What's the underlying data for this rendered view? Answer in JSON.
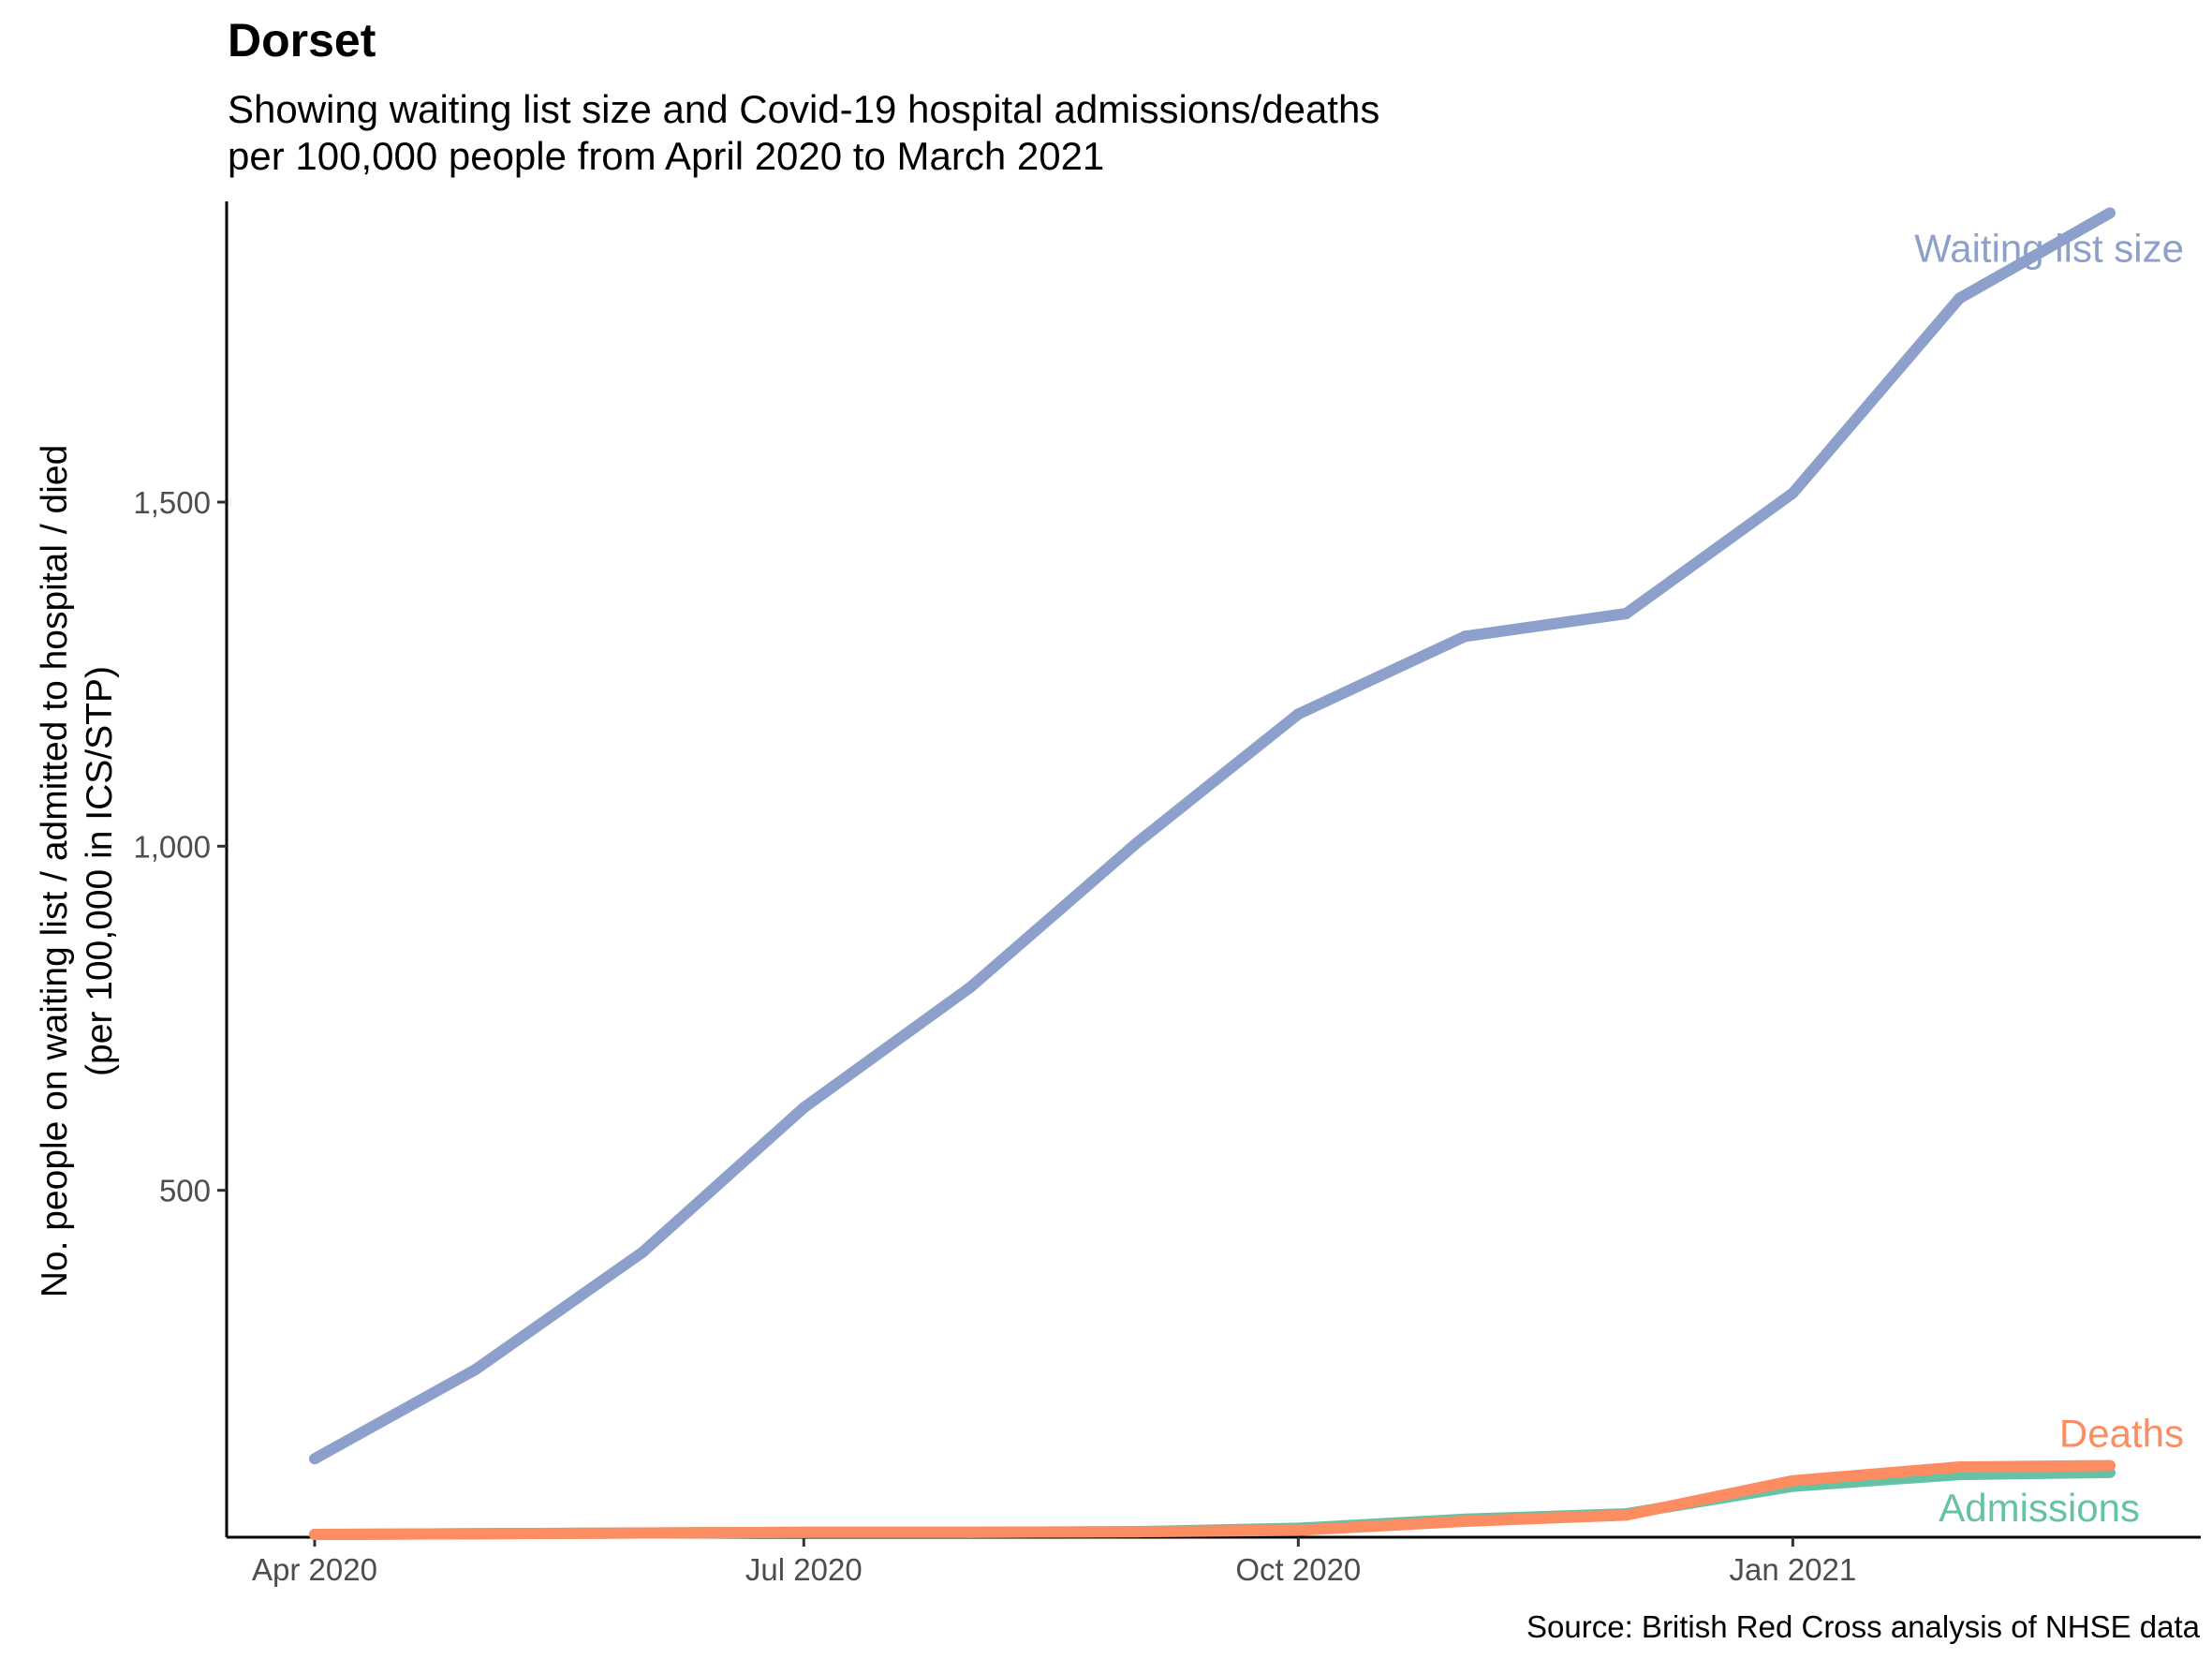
{
  "chart_data": {
    "type": "line",
    "title": "Dorset",
    "subtitle": [
      "Showing waiting list size and Covid-19 hospital admissions/deaths",
      "per 100,000 people from April 2020 to March 2021"
    ],
    "ylabel": [
      "No. people on waiting list / admitted to hospital / died",
      "(per 100,000 in ICS/STP)"
    ],
    "xlabel": "",
    "caption": "Source: British Red Cross analysis of NHSE data",
    "x": [
      "2020-04-01",
      "2020-05-01",
      "2020-06-01",
      "2020-07-01",
      "2020-08-01",
      "2020-09-01",
      "2020-10-01",
      "2020-11-01",
      "2020-12-01",
      "2021-01-01",
      "2021-02-01",
      "2021-03-01"
    ],
    "x_ticks": [
      {
        "date": "2020-04-01",
        "label": "Apr 2020"
      },
      {
        "date": "2020-07-01",
        "label": "Jul 2020"
      },
      {
        "date": "2020-10-01",
        "label": "Oct 2020"
      },
      {
        "date": "2021-01-01",
        "label": "Jan 2021"
      }
    ],
    "y_ticks": [
      {
        "value": 500,
        "label": "500"
      },
      {
        "value": 1000,
        "label": "1,000"
      },
      {
        "value": 1500,
        "label": "1,500"
      }
    ],
    "ylim": [
      0,
      1920
    ],
    "grid": false,
    "legend": "none (direct labels at line ends)",
    "series": [
      {
        "name": "Waiting list size",
        "color": "#8DA0CB",
        "values": [
          110,
          240,
          410,
          620,
          795,
          1005,
          1192,
          1305,
          1338,
          1513,
          1796,
          1920
        ]
      },
      {
        "name": "Admissions",
        "color": "#66C2A5",
        "values": [
          0,
          1,
          2,
          3,
          3,
          4,
          9,
          22,
          30,
          70,
          87,
          90
        ]
      },
      {
        "name": "Deaths",
        "color": "#FC8D62",
        "values": [
          0,
          1,
          2,
          3,
          3,
          4,
          6,
          19,
          28,
          78,
          98,
          100
        ]
      }
    ]
  }
}
